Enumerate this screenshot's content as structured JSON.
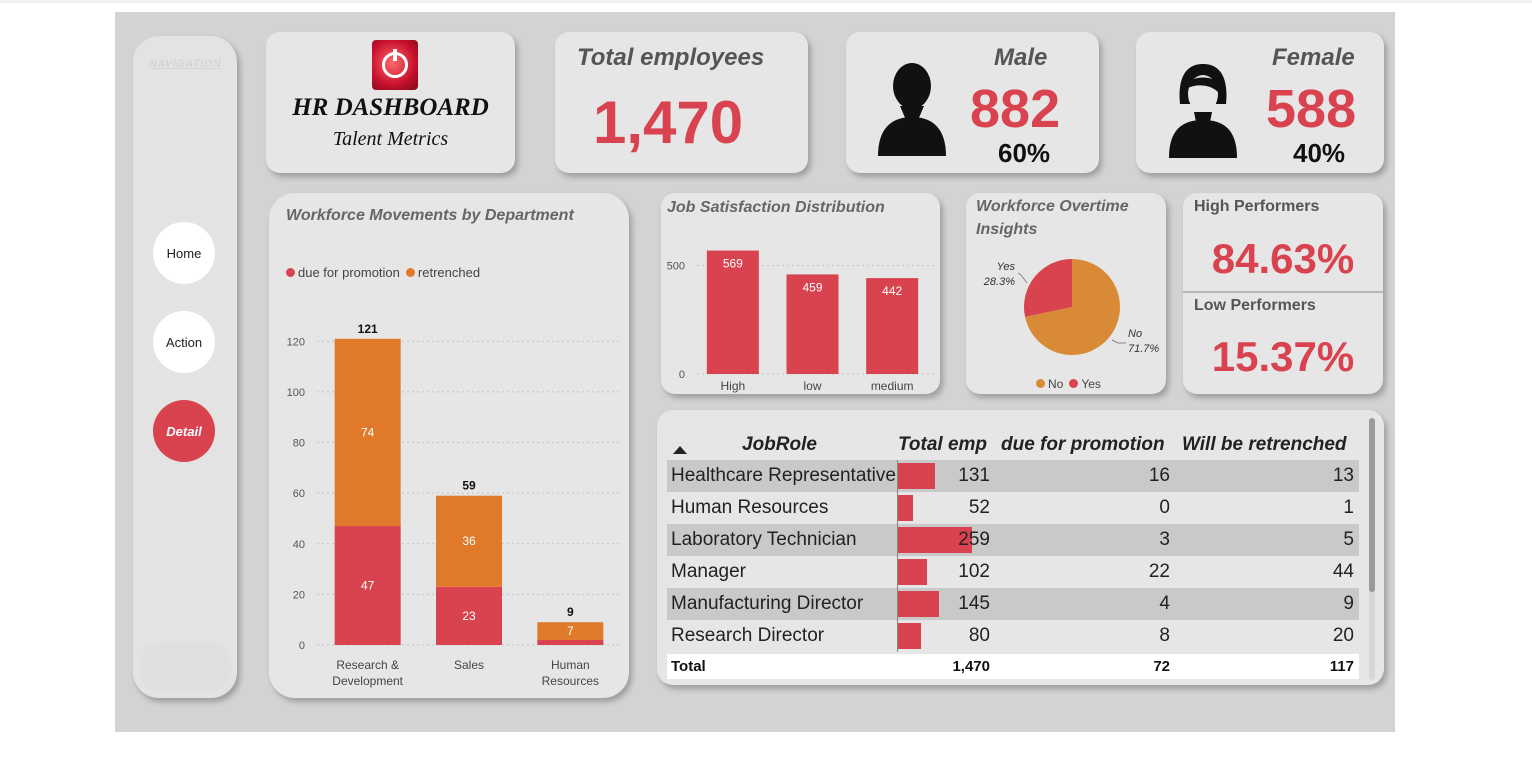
{
  "nav": {
    "title": "NAVIGATION",
    "buttons": [
      "Home",
      "Action",
      "Detail"
    ]
  },
  "header": {
    "title": "HR DASHBOARD",
    "subtitle": "Talent Metrics"
  },
  "kpis": {
    "total": {
      "label": "Total employees",
      "value": "1,470"
    },
    "male": {
      "label": "Male",
      "value": "882",
      "pct": "60%"
    },
    "female": {
      "label": "Female",
      "value": "588",
      "pct": "40%"
    }
  },
  "performance": {
    "high_label": "High Performers",
    "high_value": "84.63%",
    "low_label": "Low Performers",
    "low_value": "15.37%"
  },
  "colors": {
    "red": "#d9434f",
    "orange": "#e07a2a",
    "pie_orange": "#d98a36"
  },
  "chart_data": [
    {
      "type": "bar",
      "stacked": true,
      "title": "Workforce Movements by Department",
      "categories": [
        "Research & Development",
        "Sales",
        "Human Resources"
      ],
      "category_lines": [
        [
          "Research &",
          "Development"
        ],
        [
          "Sales"
        ],
        [
          "Human",
          "Resources"
        ]
      ],
      "series": [
        {
          "name": "due for promotion",
          "values": [
            47,
            23,
            2
          ]
        },
        {
          "name": "retrenched",
          "values": [
            74,
            36,
            7
          ]
        }
      ],
      "totals": [
        121,
        59,
        9
      ],
      "ylim": [
        0,
        130
      ],
      "yticks": [
        0,
        20,
        40,
        60,
        80,
        100,
        120
      ],
      "grid": true,
      "legend": "top-left"
    },
    {
      "type": "bar",
      "title": "Job Satisfaction Distribution",
      "categories": [
        "High",
        "low",
        "medium"
      ],
      "values": [
        569,
        459,
        442
      ],
      "ylim": [
        0,
        650
      ],
      "yticks": [
        0,
        500
      ],
      "grid": true
    },
    {
      "type": "pie",
      "title": "Workforce Overtime Insights",
      "labels": [
        "No",
        "Yes"
      ],
      "values": [
        71.7,
        28.3
      ],
      "label_text": [
        "No\n71.7%",
        "Yes\n28.3%"
      ],
      "legend": "bottom"
    }
  ],
  "table": {
    "headers": [
      "JobRole",
      "Total emp",
      "due for promotion",
      "Will be retrenched"
    ],
    "rows": [
      {
        "role": "Healthcare Representative",
        "total": "131",
        "total_num": 131,
        "promo": "16",
        "retrench": "13"
      },
      {
        "role": "Human Resources",
        "total": "52",
        "total_num": 52,
        "promo": "0",
        "retrench": "1"
      },
      {
        "role": "Laboratory Technician",
        "total": "259",
        "total_num": 259,
        "promo": "3",
        "retrench": "5"
      },
      {
        "role": "Manager",
        "total": "102",
        "total_num": 102,
        "promo": "22",
        "retrench": "44"
      },
      {
        "role": "Manufacturing Director",
        "total": "145",
        "total_num": 145,
        "promo": "4",
        "retrench": "9"
      },
      {
        "role": "Research Director",
        "total": "80",
        "total_num": 80,
        "promo": "8",
        "retrench": "20"
      }
    ],
    "total_row": {
      "label": "Total",
      "total": "1,470",
      "promo": "72",
      "retrench": "117"
    }
  }
}
